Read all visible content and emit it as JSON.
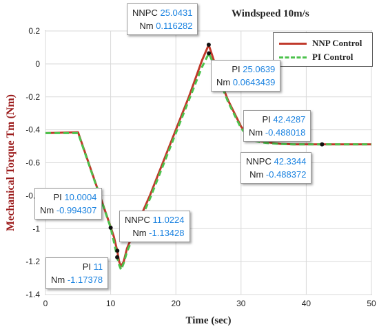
{
  "chart_data": {
    "type": "line",
    "title": "Windspeed 10m/s",
    "xlabel": "Time (sec)",
    "ylabel": "Mechanical Torque Tm (Nm)",
    "xlim": [
      0,
      50
    ],
    "ylim": [
      -1.4,
      0.2
    ],
    "xticks": [
      "0",
      "10",
      "20",
      "30",
      "40",
      "50"
    ],
    "yticks": [
      "0.2",
      "0",
      "-0.2",
      "-0.4",
      "-0.6",
      "-0.8",
      "-1",
      "-1.2",
      "-1.4"
    ],
    "grid": true,
    "legend_position": "top-right",
    "series": [
      {
        "name": "NNP Control",
        "color": "#c0392b",
        "style": "solid",
        "x": [
          0,
          5,
          10,
          10.5,
          11,
          11.3,
          11.6,
          12.0,
          12.5,
          14,
          16,
          18,
          20,
          22,
          24,
          25.04,
          26,
          27,
          28,
          29,
          30,
          31,
          32,
          33,
          34,
          36,
          38,
          40,
          42.33,
          44,
          46,
          48,
          50
        ],
        "y": [
          -0.42,
          -0.415,
          -0.99,
          -1.05,
          -1.134,
          -1.2,
          -1.23,
          -1.2,
          -1.12,
          -0.98,
          -0.8,
          -0.6,
          -0.4,
          -0.2,
          0.02,
          0.116,
          0.0,
          -0.12,
          -0.22,
          -0.3,
          -0.38,
          -0.43,
          -0.46,
          -0.47,
          -0.475,
          -0.485,
          -0.488,
          -0.488,
          -0.4884,
          -0.488,
          -0.488,
          -0.488,
          -0.488
        ]
      },
      {
        "name": "PI Control",
        "color": "#4cc24c",
        "style": "dashed",
        "x": [
          0,
          5,
          10,
          10.5,
          11,
          11.3,
          11.6,
          12.0,
          12.5,
          14,
          16,
          18,
          20,
          22,
          24,
          25.06,
          26,
          27,
          28,
          29,
          30,
          31,
          32,
          33,
          34,
          36,
          38,
          40,
          42.43,
          44,
          46,
          48,
          50
        ],
        "y": [
          -0.42,
          -0.42,
          -0.994,
          -1.08,
          -1.174,
          -1.22,
          -1.25,
          -1.21,
          -1.14,
          -1.0,
          -0.82,
          -0.62,
          -0.42,
          -0.22,
          -0.02,
          0.064,
          -0.02,
          -0.13,
          -0.23,
          -0.31,
          -0.39,
          -0.44,
          -0.465,
          -0.475,
          -0.48,
          -0.486,
          -0.488,
          -0.488,
          -0.488,
          -0.488,
          -0.488,
          -0.488,
          -0.488
        ]
      }
    ],
    "datatips": [
      {
        "id": "nnpc-peak",
        "label1": "NNPC",
        "v1": "25.0431",
        "label2": "Nm",
        "v2": "0.116282"
      },
      {
        "id": "pi-peak",
        "label1": "PI",
        "v1": "25.0639",
        "label2": "Nm",
        "v2": "0.0643439"
      },
      {
        "id": "pi-steady",
        "label1": "PI",
        "v1": "42.4287",
        "label2": "Nm",
        "v2": "-0.488018"
      },
      {
        "id": "nnpc-steady",
        "label1": "NNPC",
        "v1": "42.3344",
        "label2": "Nm",
        "v2": "-0.488372"
      },
      {
        "id": "pi-drop",
        "label1": "PI",
        "v1": "10.0004",
        "label2": "Nm",
        "v2": "-0.994307"
      },
      {
        "id": "nnpc-dip",
        "label1": "NNPC",
        "v1": "11.0224",
        "label2": "Nm",
        "v2": "-1.13428"
      },
      {
        "id": "pi-dip",
        "label1": "PI",
        "v1": "11",
        "label2": "Nm",
        "v2": "-1.17378"
      }
    ],
    "markers": [
      {
        "x": 25.0431,
        "y": 0.116282
      },
      {
        "x": 25.0639,
        "y": 0.0643439
      },
      {
        "x": 42.4287,
        "y": -0.488018
      },
      {
        "x": 10.0004,
        "y": -0.994307
      },
      {
        "x": 11.0224,
        "y": -1.13428
      },
      {
        "x": 11,
        "y": -1.17378
      }
    ]
  }
}
